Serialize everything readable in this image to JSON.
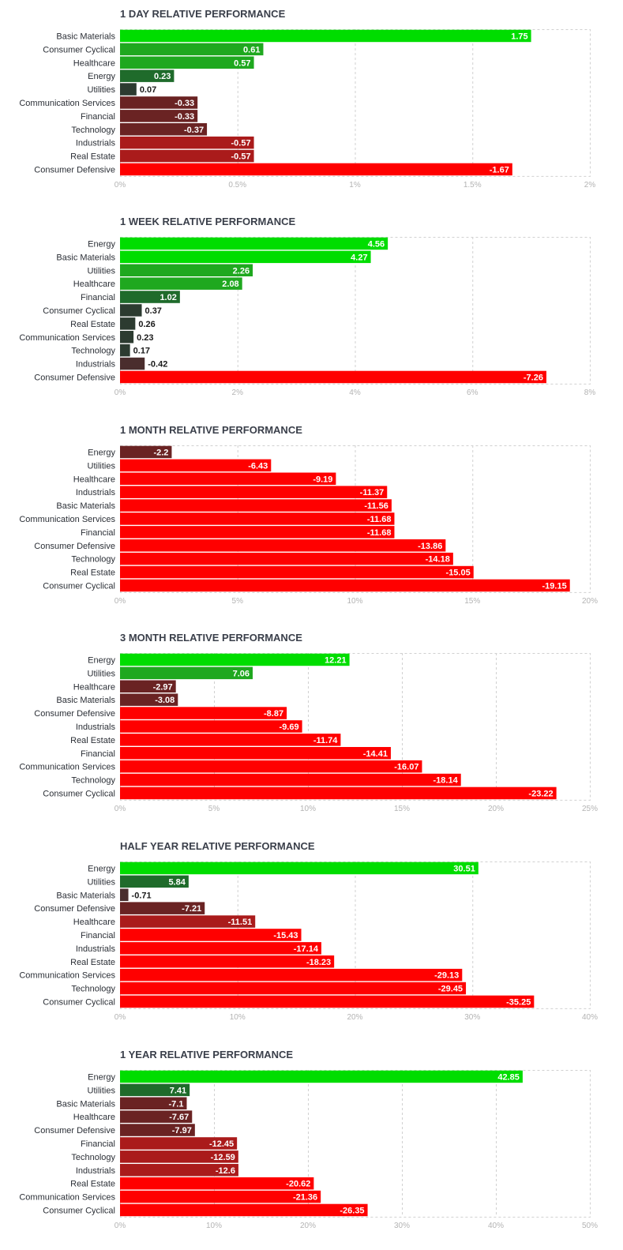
{
  "colors": {
    "pos_strong": "#00dd00",
    "pos_mid": "#1fa81f",
    "pos_weak": "#1f6b2b",
    "pos_faint": "#2c3b30",
    "neg_faint": "#4a2d2d",
    "neg_weak": "#6a2323",
    "neg_mid": "#aa1b1b",
    "neg_strong": "#ff0000",
    "grid": "#d0d0d0",
    "tick_text": "#b3b3b3"
  },
  "chart_data": [
    {
      "type": "bar",
      "orientation": "horizontal",
      "title": "1 DAY RELATIVE PERFORMANCE",
      "categories": [
        "Basic Materials",
        "Consumer Cyclical",
        "Healthcare",
        "Energy",
        "Utilities",
        "Communication Services",
        "Financial",
        "Technology",
        "Industrials",
        "Real Estate",
        "Consumer Defensive"
      ],
      "values": [
        1.75,
        0.61,
        0.57,
        0.23,
        0.07,
        -0.33,
        -0.33,
        -0.37,
        -0.57,
        -0.57,
        -1.67
      ],
      "value_labels": [
        "1.75",
        "0.61",
        "0.57",
        "0.23",
        "0.07",
        "-0.33",
        "-0.33",
        "-0.37",
        "-0.57",
        "-0.57",
        "-1.67"
      ],
      "xlim": [
        0,
        2
      ],
      "xticks": [
        "0%",
        "0.5%",
        "1%",
        "1.5%",
        "2%"
      ],
      "bar_magnitude": "absolute",
      "grid": true
    },
    {
      "type": "bar",
      "orientation": "horizontal",
      "title": "1 WEEK RELATIVE PERFORMANCE",
      "categories": [
        "Energy",
        "Basic Materials",
        "Utilities",
        "Healthcare",
        "Financial",
        "Consumer Cyclical",
        "Real Estate",
        "Communication Services",
        "Technology",
        "Industrials",
        "Consumer Defensive"
      ],
      "values": [
        4.56,
        4.27,
        2.26,
        2.08,
        1.02,
        0.37,
        0.26,
        0.23,
        0.17,
        -0.42,
        -7.26
      ],
      "value_labels": [
        "4.56",
        "4.27",
        "2.26",
        "2.08",
        "1.02",
        "0.37",
        "0.26",
        "0.23",
        "0.17",
        "-0.42",
        "-7.26"
      ],
      "xlim": [
        0,
        8
      ],
      "xticks": [
        "0%",
        "2%",
        "4%",
        "6%",
        "8%"
      ],
      "bar_magnitude": "absolute",
      "grid": true
    },
    {
      "type": "bar",
      "orientation": "horizontal",
      "title": "1 MONTH RELATIVE PERFORMANCE",
      "categories": [
        "Energy",
        "Utilities",
        "Healthcare",
        "Industrials",
        "Basic Materials",
        "Communication Services",
        "Financial",
        "Consumer Defensive",
        "Technology",
        "Real Estate",
        "Consumer Cyclical"
      ],
      "values": [
        -2.2,
        -6.43,
        -9.19,
        -11.37,
        -11.56,
        -11.68,
        -11.68,
        -13.86,
        -14.18,
        -15.05,
        -19.15
      ],
      "value_labels": [
        "-2.2",
        "-6.43",
        "-9.19",
        "-11.37",
        "-11.56",
        "-11.68",
        "-11.68",
        "-13.86",
        "-14.18",
        "-15.05",
        "-19.15"
      ],
      "xlim": [
        0,
        20
      ],
      "xticks": [
        "0%",
        "5%",
        "10%",
        "15%",
        "20%"
      ],
      "bar_magnitude": "absolute",
      "grid": true
    },
    {
      "type": "bar",
      "orientation": "horizontal",
      "title": "3 MONTH RELATIVE PERFORMANCE",
      "categories": [
        "Energy",
        "Utilities",
        "Healthcare",
        "Basic Materials",
        "Consumer Defensive",
        "Industrials",
        "Real Estate",
        "Financial",
        "Communication Services",
        "Technology",
        "Consumer Cyclical"
      ],
      "values": [
        12.21,
        7.06,
        -2.97,
        -3.08,
        -8.87,
        -9.69,
        -11.74,
        -14.41,
        -16.07,
        -18.14,
        -23.22
      ],
      "value_labels": [
        "12.21",
        "7.06",
        "-2.97",
        "-3.08",
        "-8.87",
        "-9.69",
        "-11.74",
        "-14.41",
        "-16.07",
        "-18.14",
        "-23.22"
      ],
      "xlim": [
        0,
        25
      ],
      "xticks": [
        "0%",
        "5%",
        "10%",
        "15%",
        "20%",
        "25%"
      ],
      "bar_magnitude": "absolute",
      "grid": true
    },
    {
      "type": "bar",
      "orientation": "horizontal",
      "title": "HALF YEAR RELATIVE PERFORMANCE",
      "categories": [
        "Energy",
        "Utilities",
        "Basic Materials",
        "Consumer Defensive",
        "Healthcare",
        "Financial",
        "Industrials",
        "Real Estate",
        "Communication Services",
        "Technology",
        "Consumer Cyclical"
      ],
      "values": [
        30.51,
        5.84,
        -0.71,
        -7.21,
        -11.51,
        -15.43,
        -17.14,
        -18.23,
        -29.13,
        -29.45,
        -35.25
      ],
      "value_labels": [
        "30.51",
        "5.84",
        "-0.71",
        "-7.21",
        "-11.51",
        "-15.43",
        "-17.14",
        "-18.23",
        "-29.13",
        "-29.45",
        "-35.25"
      ],
      "xlim": [
        0,
        40
      ],
      "xticks": [
        "0%",
        "10%",
        "20%",
        "30%",
        "40%"
      ],
      "bar_magnitude": "absolute",
      "grid": true
    },
    {
      "type": "bar",
      "orientation": "horizontal",
      "title": "1 YEAR RELATIVE PERFORMANCE",
      "categories": [
        "Energy",
        "Utilities",
        "Basic Materials",
        "Healthcare",
        "Consumer Defensive",
        "Financial",
        "Technology",
        "Industrials",
        "Real Estate",
        "Communication Services",
        "Consumer Cyclical"
      ],
      "values": [
        42.85,
        7.41,
        -7.1,
        -7.67,
        -7.97,
        -12.45,
        -12.59,
        -12.6,
        -20.62,
        -21.36,
        -26.35
      ],
      "value_labels": [
        "42.85",
        "7.41",
        "-7.1",
        "-7.67",
        "-7.97",
        "-12.45",
        "-12.59",
        "-12.6",
        "-20.62",
        "-21.36",
        "-26.35"
      ],
      "xlim": [
        0,
        50
      ],
      "xticks": [
        "0%",
        "10%",
        "20%",
        "30%",
        "40%",
        "50%"
      ],
      "bar_magnitude": "absolute",
      "grid": true
    }
  ]
}
